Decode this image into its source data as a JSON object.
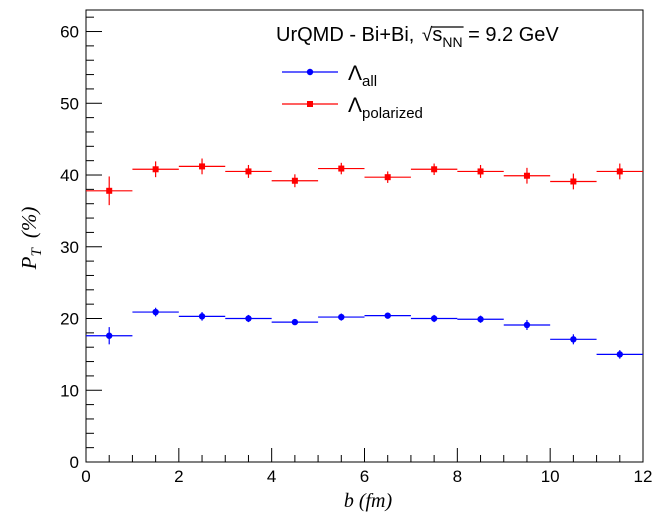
{
  "chart_data": {
    "type": "scatter",
    "title": "UrQMD - Bi+Bi, √s_NN = 9.2 GeV",
    "title_parts": {
      "prefix": "UrQMD - Bi+Bi, ",
      "sqrt_symbol": "√",
      "s": "s",
      "s_sub": "NN",
      "suffix": " = 9.2 GeV"
    },
    "xlabel": "b (fm)",
    "ylabel": {
      "main": "P",
      "sub": "T",
      "unit": "(%)"
    },
    "xlim": [
      0,
      12
    ],
    "ylim": [
      0,
      63
    ],
    "x_ticks": [
      0,
      2,
      4,
      6,
      8,
      10,
      12
    ],
    "y_ticks": [
      0,
      10,
      20,
      30,
      40,
      50,
      60
    ],
    "x_tick_labels": [
      "0",
      "2",
      "4",
      "6",
      "8",
      "10",
      "12"
    ],
    "y_tick_labels": [
      "0",
      "10",
      "20",
      "30",
      "40",
      "50",
      "60"
    ],
    "grid": false,
    "legend_position": "top-right",
    "x_bin_half_width": 0.5,
    "series": [
      {
        "name": "Λall",
        "legend": {
          "symbol": "Λ",
          "sub": "all"
        },
        "color": "#0000ff",
        "marker": "circle",
        "x": [
          0.5,
          1.5,
          2.5,
          3.5,
          4.5,
          5.5,
          6.5,
          7.5,
          8.5,
          9.5,
          10.5,
          11.5
        ],
        "y": [
          17.6,
          20.9,
          20.3,
          20.0,
          19.5,
          20.2,
          20.4,
          20.0,
          19.9,
          19.1,
          17.1,
          15.0
        ],
        "yerr": [
          1.2,
          0.6,
          0.6,
          0.5,
          0.4,
          0.5,
          0.4,
          0.5,
          0.5,
          0.7,
          0.7,
          0.6
        ]
      },
      {
        "name": "Λpolarized",
        "legend": {
          "symbol": "Λ",
          "sub": "polarized"
        },
        "color": "#ff0000",
        "marker": "square",
        "x": [
          0.5,
          1.5,
          2.5,
          3.5,
          4.5,
          5.5,
          6.5,
          7.5,
          8.5,
          9.5,
          10.5,
          11.5
        ],
        "y": [
          37.8,
          40.8,
          41.2,
          40.5,
          39.2,
          40.9,
          39.7,
          40.8,
          40.5,
          39.9,
          39.1,
          40.5
        ],
        "yerr": [
          2.0,
          1.1,
          1.1,
          0.9,
          0.9,
          0.8,
          0.8,
          0.8,
          0.9,
          1.1,
          1.1,
          1.1
        ]
      }
    ]
  }
}
